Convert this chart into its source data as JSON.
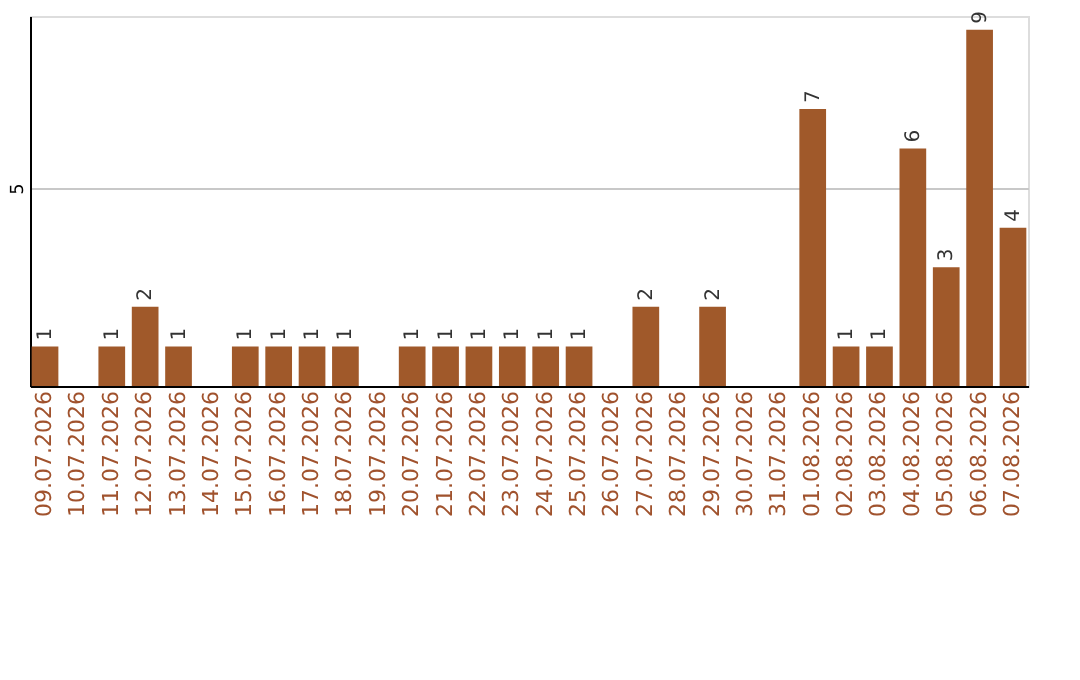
{
  "chart_data": {
    "type": "bar",
    "categories": [
      "09.07.2026",
      "10.07.2026",
      "11.07.2026",
      "12.07.2026",
      "13.07.2026",
      "14.07.2026",
      "15.07.2026",
      "16.07.2026",
      "17.07.2026",
      "18.07.2026",
      "19.07.2026",
      "20.07.2026",
      "21.07.2026",
      "22.07.2026",
      "23.07.2026",
      "24.07.2026",
      "25.07.2026",
      "26.07.2026",
      "27.07.2026",
      "28.07.2026",
      "29.07.2026",
      "30.07.2026",
      "31.07.2026",
      "01.08.2026",
      "02.08.2026",
      "03.08.2026",
      "04.08.2026",
      "05.08.2026",
      "06.08.2026",
      "07.08.2026"
    ],
    "values": [
      1,
      null,
      1,
      2,
      1,
      null,
      1,
      1,
      1,
      1,
      null,
      1,
      1,
      1,
      1,
      1,
      1,
      null,
      2,
      null,
      2,
      null,
      null,
      7,
      1,
      1,
      6,
      3,
      9,
      4
    ],
    "color": "#a0592a",
    "ylim": [
      0,
      9.35
    ],
    "yticks": [
      5
    ],
    "grid": "y",
    "data_labels": true
  }
}
